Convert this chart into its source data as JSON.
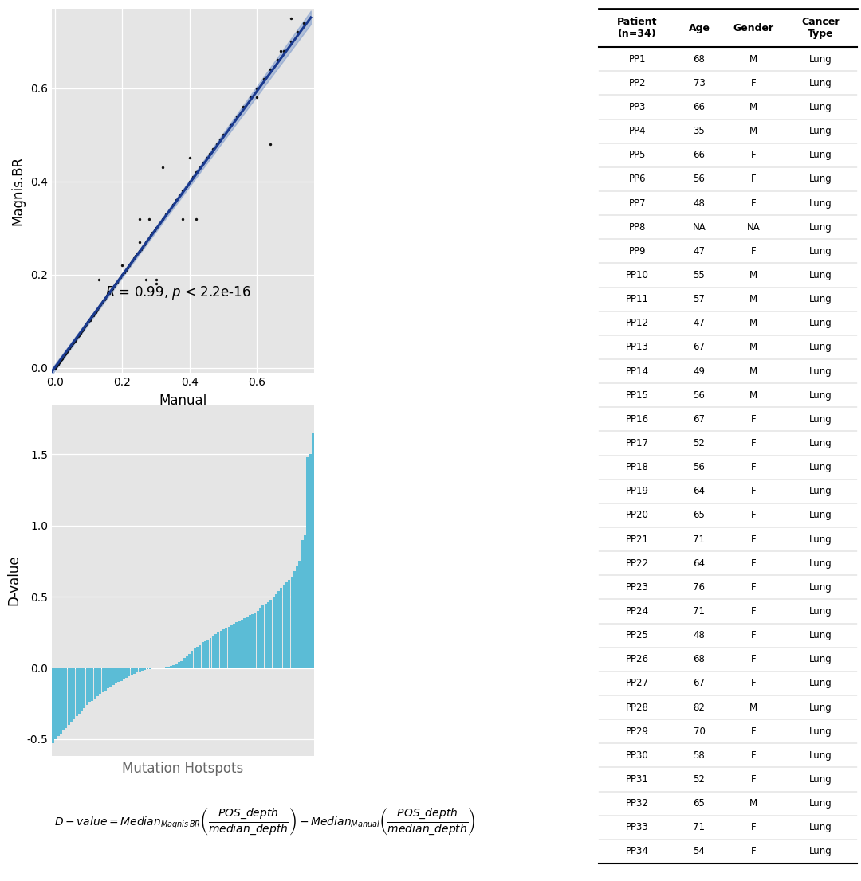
{
  "scatter_x": [
    0.0,
    0.0,
    0.0,
    0.0,
    0.0,
    0.001,
    0.001,
    0.002,
    0.002,
    0.003,
    0.003,
    0.004,
    0.005,
    0.005,
    0.006,
    0.007,
    0.008,
    0.009,
    0.01,
    0.01,
    0.011,
    0.012,
    0.013,
    0.014,
    0.015,
    0.016,
    0.017,
    0.018,
    0.019,
    0.02,
    0.021,
    0.022,
    0.023,
    0.025,
    0.026,
    0.028,
    0.029,
    0.03,
    0.031,
    0.032,
    0.033,
    0.035,
    0.036,
    0.038,
    0.04,
    0.041,
    0.043,
    0.045,
    0.047,
    0.05,
    0.052,
    0.054,
    0.056,
    0.058,
    0.06,
    0.062,
    0.065,
    0.068,
    0.07,
    0.073,
    0.075,
    0.078,
    0.08,
    0.083,
    0.085,
    0.088,
    0.09,
    0.093,
    0.095,
    0.098,
    0.1,
    0.103,
    0.106,
    0.11,
    0.113,
    0.116,
    0.12,
    0.123,
    0.126,
    0.13,
    0.133,
    0.136,
    0.14,
    0.143,
    0.146,
    0.15,
    0.155,
    0.16,
    0.165,
    0.17,
    0.175,
    0.18,
    0.185,
    0.19,
    0.195,
    0.2,
    0.205,
    0.21,
    0.215,
    0.22,
    0.225,
    0.23,
    0.235,
    0.24,
    0.245,
    0.25,
    0.255,
    0.26,
    0.265,
    0.27,
    0.275,
    0.28,
    0.285,
    0.29,
    0.295,
    0.3,
    0.31,
    0.32,
    0.33,
    0.34,
    0.35,
    0.36,
    0.37,
    0.38,
    0.39,
    0.4,
    0.41,
    0.42,
    0.43,
    0.44,
    0.45,
    0.46,
    0.47,
    0.48,
    0.49,
    0.5,
    0.52,
    0.54,
    0.56,
    0.58,
    0.6,
    0.62,
    0.64,
    0.66,
    0.68,
    0.7,
    0.72,
    0.74,
    0.13,
    0.2,
    0.25,
    0.28,
    0.3,
    0.25,
    0.27,
    0.3,
    0.32,
    0.35,
    0.38,
    0.4,
    0.42,
    0.3,
    0.6,
    0.64,
    0.67,
    0.7
  ],
  "scatter_y": [
    0.0,
    0.0,
    0.0,
    0.001,
    0.001,
    0.001,
    0.002,
    0.002,
    0.003,
    0.003,
    0.004,
    0.004,
    0.005,
    0.005,
    0.006,
    0.007,
    0.008,
    0.009,
    0.01,
    0.011,
    0.011,
    0.012,
    0.013,
    0.014,
    0.015,
    0.016,
    0.017,
    0.018,
    0.019,
    0.02,
    0.021,
    0.022,
    0.023,
    0.025,
    0.026,
    0.028,
    0.029,
    0.03,
    0.031,
    0.032,
    0.033,
    0.035,
    0.036,
    0.038,
    0.04,
    0.041,
    0.043,
    0.045,
    0.047,
    0.05,
    0.052,
    0.054,
    0.056,
    0.058,
    0.06,
    0.062,
    0.065,
    0.068,
    0.07,
    0.073,
    0.075,
    0.078,
    0.08,
    0.083,
    0.085,
    0.088,
    0.09,
    0.093,
    0.095,
    0.098,
    0.1,
    0.103,
    0.106,
    0.11,
    0.113,
    0.116,
    0.12,
    0.123,
    0.126,
    0.13,
    0.133,
    0.136,
    0.14,
    0.143,
    0.146,
    0.15,
    0.155,
    0.16,
    0.165,
    0.17,
    0.175,
    0.18,
    0.185,
    0.19,
    0.195,
    0.2,
    0.205,
    0.21,
    0.215,
    0.22,
    0.225,
    0.23,
    0.235,
    0.24,
    0.245,
    0.25,
    0.255,
    0.26,
    0.265,
    0.27,
    0.275,
    0.28,
    0.285,
    0.29,
    0.295,
    0.3,
    0.31,
    0.32,
    0.33,
    0.34,
    0.35,
    0.36,
    0.37,
    0.38,
    0.39,
    0.4,
    0.41,
    0.42,
    0.43,
    0.44,
    0.45,
    0.46,
    0.47,
    0.48,
    0.49,
    0.5,
    0.52,
    0.54,
    0.56,
    0.58,
    0.6,
    0.62,
    0.64,
    0.66,
    0.68,
    0.7,
    0.72,
    0.74,
    0.19,
    0.22,
    0.32,
    0.32,
    0.19,
    0.27,
    0.19,
    0.3,
    0.43,
    0.35,
    0.32,
    0.45,
    0.32,
    0.18,
    0.58,
    0.48,
    0.68,
    0.75
  ],
  "bar_values": [
    -0.53,
    -0.5,
    -0.48,
    -0.46,
    -0.44,
    -0.42,
    -0.4,
    -0.38,
    -0.36,
    -0.34,
    -0.32,
    -0.3,
    -0.28,
    -0.26,
    -0.24,
    -0.23,
    -0.22,
    -0.2,
    -0.18,
    -0.17,
    -0.16,
    -0.14,
    -0.13,
    -0.12,
    -0.11,
    -0.1,
    -0.09,
    -0.08,
    -0.07,
    -0.06,
    -0.05,
    -0.04,
    -0.03,
    -0.025,
    -0.02,
    -0.015,
    -0.01,
    -0.008,
    -0.005,
    -0.003,
    0.0,
    0.003,
    0.005,
    0.008,
    0.01,
    0.015,
    0.02,
    0.03,
    0.04,
    0.05,
    0.07,
    0.08,
    0.1,
    0.12,
    0.14,
    0.15,
    0.16,
    0.18,
    0.19,
    0.2,
    0.21,
    0.22,
    0.24,
    0.25,
    0.26,
    0.27,
    0.28,
    0.29,
    0.3,
    0.31,
    0.32,
    0.33,
    0.34,
    0.35,
    0.36,
    0.37,
    0.38,
    0.39,
    0.4,
    0.42,
    0.44,
    0.45,
    0.46,
    0.48,
    0.5,
    0.52,
    0.54,
    0.56,
    0.58,
    0.6,
    0.62,
    0.64,
    0.68,
    0.72,
    0.75,
    0.9,
    0.93,
    1.48,
    1.5,
    1.65
  ],
  "scatter_xlabel": "Manual",
  "scatter_ylabel": "Magnis.BR",
  "bar_xlabel": "Mutation Hotspots",
  "bar_ylabel": "D-value",
  "bg_color": "#e5e5e5",
  "bar_color": "#5bbcd6",
  "line_color": "#1a3a8f",
  "ci_color": "#7090c8",
  "scatter_dot_color": "#111111",
  "table_patients": [
    "PP1",
    "PP2",
    "PP3",
    "PP4",
    "PP5",
    "PP6",
    "PP7",
    "PP8",
    "PP9",
    "PP10",
    "PP11",
    "PP12",
    "PP13",
    "PP14",
    "PP15",
    "PP16",
    "PP17",
    "PP18",
    "PP19",
    "PP20",
    "PP21",
    "PP22",
    "PP23",
    "PP24",
    "PP25",
    "PP26",
    "PP27",
    "PP28",
    "PP29",
    "PP30",
    "PP31",
    "PP32",
    "PP33",
    "PP34"
  ],
  "table_ages": [
    "68",
    "73",
    "66",
    "35",
    "66",
    "56",
    "48",
    "NA",
    "47",
    "55",
    "57",
    "47",
    "67",
    "49",
    "56",
    "67",
    "52",
    "56",
    "64",
    "65",
    "71",
    "64",
    "76",
    "71",
    "48",
    "68",
    "67",
    "82",
    "70",
    "58",
    "52",
    "65",
    "71",
    "54"
  ],
  "table_genders": [
    "M",
    "F",
    "M",
    "M",
    "F",
    "F",
    "F",
    "NA",
    "F",
    "M",
    "M",
    "M",
    "M",
    "M",
    "M",
    "F",
    "F",
    "F",
    "F",
    "F",
    "F",
    "F",
    "F",
    "F",
    "F",
    "F",
    "F",
    "M",
    "F",
    "F",
    "F",
    "M",
    "F",
    "F"
  ],
  "table_cancer": [
    "Lung",
    "Lung",
    "Lung",
    "Lung",
    "Lung",
    "Lung",
    "Lung",
    "Lung",
    "Lung",
    "Lung",
    "Lung",
    "Lung",
    "Lung",
    "Lung",
    "Lung",
    "Lung",
    "Lung",
    "Lung",
    "Lung",
    "Lung",
    "Lung",
    "Lung",
    "Lung",
    "Lung",
    "Lung",
    "Lung",
    "Lung",
    "Lung",
    "Lung",
    "Lung",
    "Lung",
    "Lung",
    "Lung",
    "Lung"
  ]
}
